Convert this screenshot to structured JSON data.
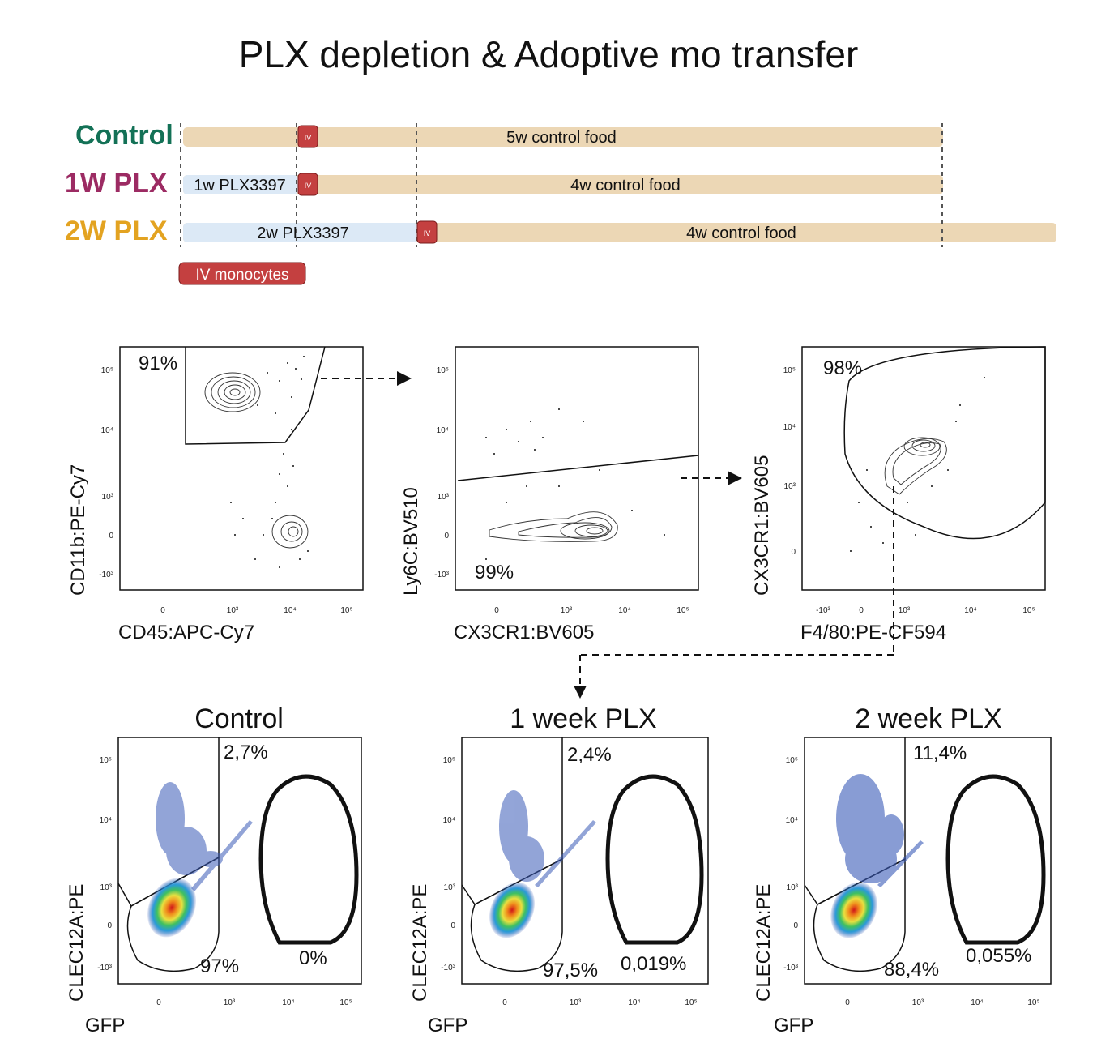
{
  "figure_title": "PLX depletion & Adoptive mo transfer",
  "colors": {
    "control": "#137156",
    "plx1": "#9c2b63",
    "plx2": "#e3a321",
    "control_food": "#ecd7b5",
    "plx_food": "#dce9f6",
    "iv": "#c44040"
  },
  "timeline": {
    "groups": [
      {
        "label": "Control",
        "segments": [
          "5w control food"
        ]
      },
      {
        "label": "1W PLX",
        "segments": [
          "1w PLX3397",
          "4w control food"
        ]
      },
      {
        "label": "2W PLX",
        "segments": [
          "2w PLX3397",
          "4w control food"
        ]
      }
    ],
    "iv_marker": "IV",
    "legend": "IV monocytes"
  },
  "gating": [
    {
      "xlabel": "CD45:APC-Cy7",
      "ylabel": "CD11b:PE-Cy7",
      "gate_pct": "91%",
      "xticks": [
        "0",
        "10³",
        "10⁴",
        "10⁵"
      ],
      "yticks": [
        "10⁵",
        "10⁴",
        "10³",
        "0",
        "-10³"
      ]
    },
    {
      "xlabel": "CX3CR1:BV605",
      "ylabel": "Ly6C:BV510",
      "gate_pct": "99%",
      "xticks": [
        "0",
        "10³",
        "10⁴",
        "10⁵"
      ],
      "yticks": [
        "10⁵",
        "10⁴",
        "10³",
        "0",
        "-10³"
      ]
    },
    {
      "xlabel": "F4/80:PE-CF594",
      "ylabel": "CX3CR1:BV605",
      "gate_pct": "98%",
      "xticks": [
        "-10³",
        "0",
        "10³",
        "10⁴",
        "10⁵"
      ],
      "yticks": [
        "10⁵",
        "10⁴",
        "10³",
        "0"
      ]
    }
  ],
  "gfp_plots": [
    {
      "title": "Control",
      "top_pct": "2,7%",
      "bottom_pct": "97%",
      "gfp_pct": "0%",
      "xlabel": "GFP",
      "ylabel": "CLEC12A:PE"
    },
    {
      "title": "1 week PLX",
      "top_pct": "2,4%",
      "bottom_pct": "97,5%",
      "gfp_pct": "0,019%",
      "xlabel": "GFP",
      "ylabel": "CLEC12A:PE"
    },
    {
      "title": "2 week PLX",
      "top_pct": "11,4%",
      "bottom_pct": "88,4%",
      "gfp_pct": "0,055%",
      "xlabel": "GFP",
      "ylabel": "CLEC12A:PE"
    }
  ],
  "gfp_ticks": {
    "x": [
      "0",
      "10³",
      "10⁴",
      "10⁵"
    ],
    "y": [
      "10⁵",
      "10⁴",
      "10³",
      "0",
      "-10³"
    ]
  }
}
